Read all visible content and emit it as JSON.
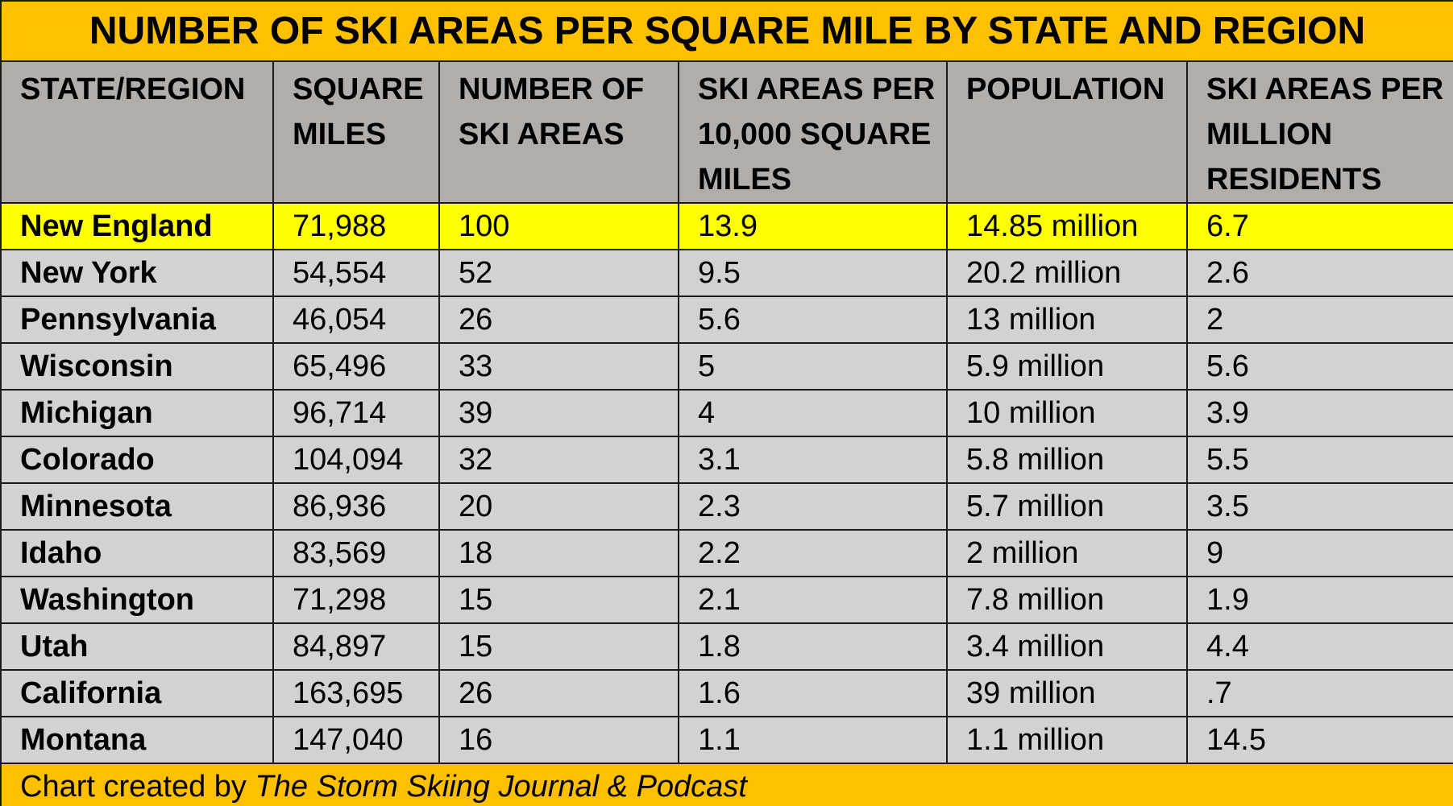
{
  "chart_data": {
    "type": "table",
    "title": "NUMBER OF SKI AREAS PER SQUARE MILE BY STATE AND REGION",
    "columns": [
      "STATE/REGION",
      "SQUARE MILES",
      "NUMBER OF SKI AREAS",
      "SKI AREAS PER 10,000 SQUARE MILES",
      "POPULATION",
      "SKI AREAS PER MILLION RESIDENTS"
    ],
    "rows": [
      [
        "New England",
        "71,988",
        "100",
        "13.9",
        "14.85 million",
        "6.7"
      ],
      [
        "New York",
        "54,554",
        "52",
        "9.5",
        "20.2 million",
        "2.6"
      ],
      [
        "Pennsylvania",
        "46,054",
        "26",
        "5.6",
        "13 million",
        "2"
      ],
      [
        "Wisconsin",
        "65,496",
        "33",
        "5",
        "5.9 million",
        "5.6"
      ],
      [
        "Michigan",
        "96,714",
        "39",
        "4",
        "10 million",
        "3.9"
      ],
      [
        "Colorado",
        "104,094",
        "32",
        "3.1",
        "5.8 million",
        "5.5"
      ],
      [
        "Minnesota",
        "86,936",
        "20",
        "2.3",
        "5.7 million",
        "3.5"
      ],
      [
        "Idaho",
        "83,569",
        "18",
        "2.2",
        "2 million",
        "9"
      ],
      [
        "Washington",
        "71,298",
        "15",
        "2.1",
        "7.8 million",
        "1.9"
      ],
      [
        "Utah",
        "84,897",
        "15",
        "1.8",
        "3.4 million",
        "4.4"
      ],
      [
        "California",
        "163,695",
        "26",
        "1.6",
        "39 million",
        ".7"
      ],
      [
        "Montana",
        "147,040",
        "16",
        "1.1",
        "1.1 million",
        "14.5"
      ]
    ],
    "highlighted_row": "New England",
    "footer": {
      "prefix": "Chart created by ",
      "source": "The Storm Skiing Journal & Podcast"
    }
  },
  "colors": {
    "title_bg": "#FFC000",
    "header_bg": "#B1ADAB",
    "row_bg": "#D4D2D1",
    "highlight_bg": "#FFFF00",
    "footer_bg": "#FFC000",
    "border": "#1a1a1a"
  }
}
